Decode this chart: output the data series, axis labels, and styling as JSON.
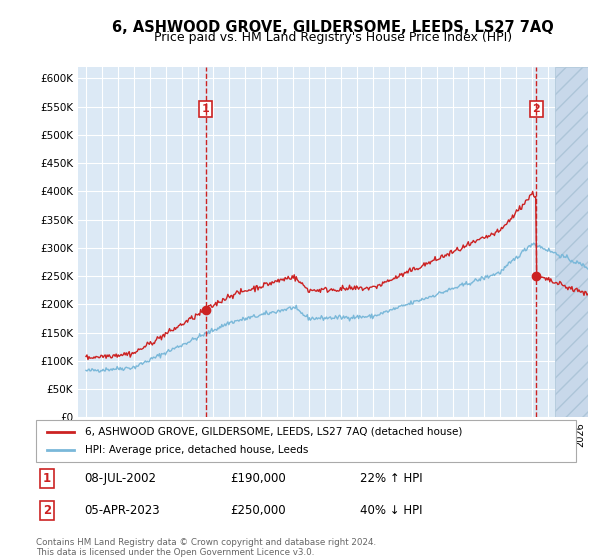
{
  "title": "6, ASHWOOD GROVE, GILDERSOME, LEEDS, LS27 7AQ",
  "subtitle": "Price paid vs. HM Land Registry's House Price Index (HPI)",
  "ylim": [
    0,
    620000
  ],
  "yticks": [
    0,
    50000,
    100000,
    150000,
    200000,
    250000,
    300000,
    350000,
    400000,
    450000,
    500000,
    550000,
    600000
  ],
  "xlim_start": 1994.5,
  "xlim_end": 2026.5,
  "sale1_x": 2002.52,
  "sale1_y": 190000,
  "sale2_x": 2023.26,
  "sale2_y": 250000,
  "legend_line1": "6, ASHWOOD GROVE, GILDERSOME, LEEDS, LS27 7AQ (detached house)",
  "legend_line2": "HPI: Average price, detached house, Leeds",
  "ann1_date": "08-JUL-2002",
  "ann1_price": "£190,000",
  "ann1_hpi": "22% ↑ HPI",
  "ann2_date": "05-APR-2023",
  "ann2_price": "£250,000",
  "ann2_hpi": "40% ↓ HPI",
  "footnote": "Contains HM Land Registry data © Crown copyright and database right 2024.\nThis data is licensed under the Open Government Licence v3.0.",
  "hpi_color": "#7ab8d9",
  "price_color": "#cc2222",
  "sale_color": "#cc2222",
  "bg_color": "#dce9f5",
  "grid_color": "#ffffff",
  "box_color": "#cc2222",
  "hatch_start": 2024.42
}
